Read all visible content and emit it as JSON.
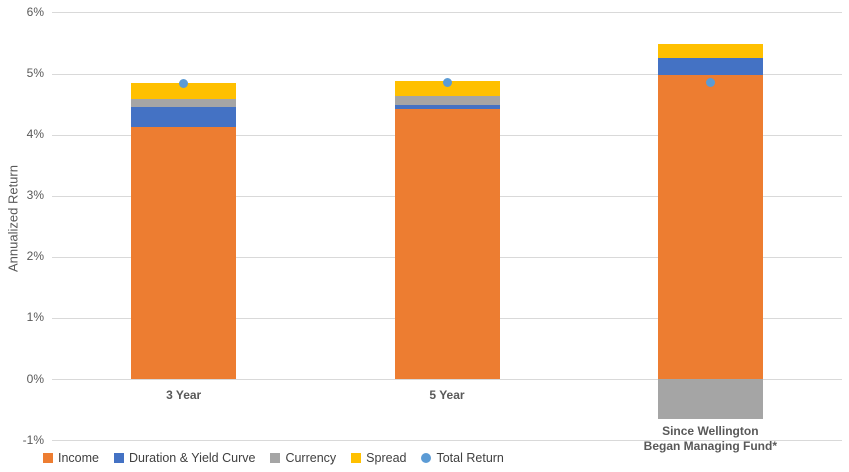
{
  "chart_data": {
    "type": "bar",
    "stacked": true,
    "title": "",
    "xlabel": "",
    "ylabel": "Annualized Return",
    "ylim": [
      -1,
      6
    ],
    "ytick_labels": [
      "6%",
      "5%",
      "4%",
      "3%",
      "2%",
      "1%",
      "0%",
      "-1%"
    ],
    "ytick_values": [
      6,
      5,
      4,
      3,
      2,
      1,
      0,
      -1
    ],
    "grid": true,
    "legend_position": "bottom-left",
    "categories": [
      "3 Year",
      "5 Year",
      "Since Wellington\nBegan Managing Fund*"
    ],
    "series": [
      {
        "name": "Income",
        "type": "bar",
        "color": "#ED7D31",
        "values": [
          4.12,
          4.42,
          4.97
        ]
      },
      {
        "name": "Duration & Yield Curve",
        "type": "bar",
        "color": "#4472C4",
        "values": [
          0.33,
          0.07,
          0.28
        ]
      },
      {
        "name": "Currency",
        "type": "bar",
        "color": "#A5A5A5",
        "values": [
          0.14,
          0.14,
          -0.65
        ]
      },
      {
        "name": "Spread",
        "type": "bar",
        "color": "#FFC000",
        "values": [
          0.25,
          0.24,
          0.23
        ]
      },
      {
        "name": "Total Return",
        "type": "point",
        "color": "#5B9BD5",
        "values": [
          4.83,
          4.86,
          4.85
        ]
      }
    ]
  },
  "colors": {
    "gridline": "#d9d9d9",
    "axis_text": "#595959",
    "legend_text": "#404040",
    "background": "#ffffff"
  }
}
